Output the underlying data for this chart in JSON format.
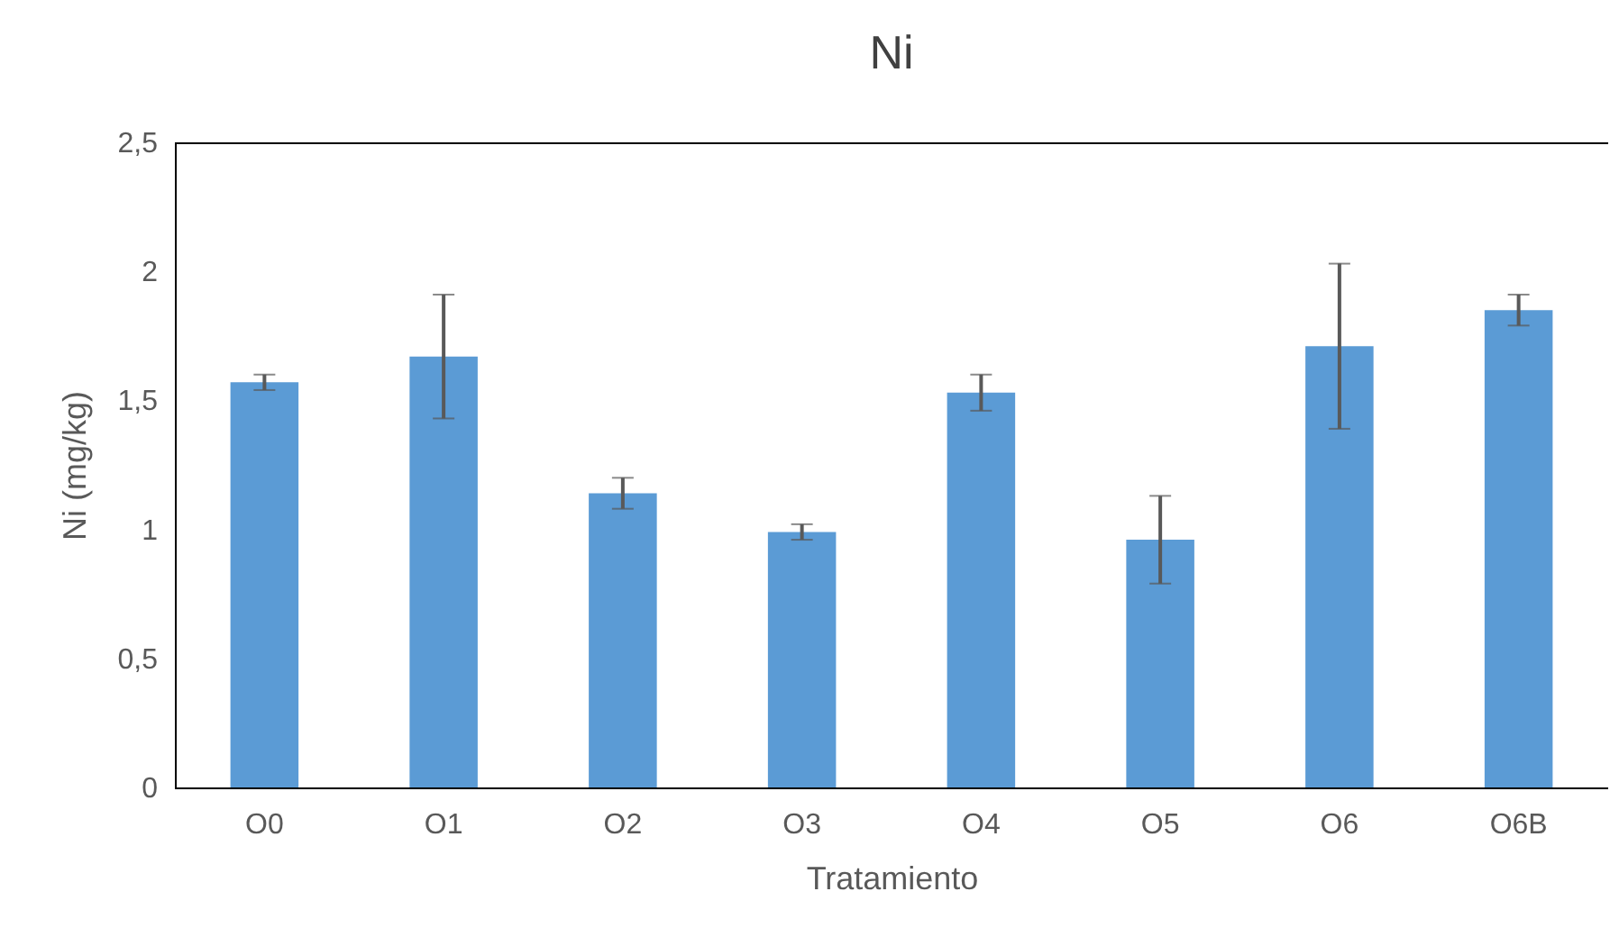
{
  "chart_data": {
    "type": "bar",
    "title": "Ni",
    "xlabel": "Tratamiento",
    "ylabel": "Ni (mg/kg)",
    "categories": [
      "O0",
      "O1",
      "O2",
      "O3",
      "O4",
      "O5",
      "O6",
      "O6B"
    ],
    "values": [
      1.57,
      1.67,
      1.14,
      0.99,
      1.53,
      0.96,
      1.71,
      1.85
    ],
    "errors": [
      0.03,
      0.24,
      0.06,
      0.03,
      0.07,
      0.17,
      0.32,
      0.06
    ],
    "color": "#5b9bd5",
    "ylim": [
      0,
      2.5
    ],
    "yticks": [
      0,
      {
        "value": 0.5,
        "label": "0,5"
      },
      1,
      {
        "value": 1.5,
        "label": "1,5"
      },
      2,
      {
        "value": 2.5,
        "label": "2,5"
      }
    ],
    "grid": false
  }
}
